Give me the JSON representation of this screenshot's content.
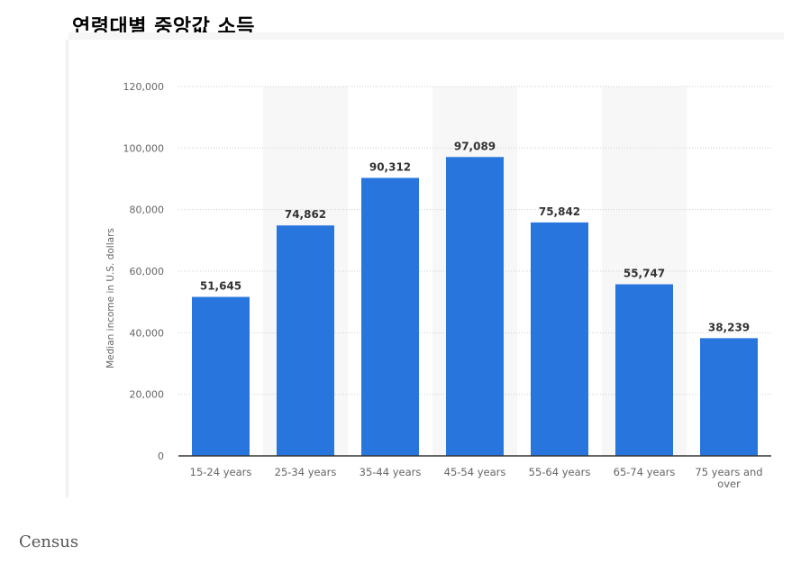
{
  "page": {
    "title": "연령대별 중앙값 소득",
    "source": "Census"
  },
  "chart_data": {
    "type": "bar",
    "title": "",
    "xlabel": "",
    "ylabel": "Median income in U.S. dollars",
    "categories": [
      "15-24 years",
      "25-34 years",
      "35-44 years",
      "45-54 years",
      "55-64 years",
      "65-74 years",
      "75 years and over"
    ],
    "category_lines": [
      [
        "15-24 years"
      ],
      [
        "25-34 years"
      ],
      [
        "35-44 years"
      ],
      [
        "45-54 years"
      ],
      [
        "55-64 years"
      ],
      [
        "65-74 years"
      ],
      [
        "75 years and",
        "over"
      ]
    ],
    "values": [
      51645,
      74862,
      90312,
      97089,
      75842,
      55747,
      38239
    ],
    "value_labels": [
      "51,645",
      "74,862",
      "90,312",
      "97,089",
      "75,842",
      "55,747",
      "38,239"
    ],
    "ylim": [
      0,
      120000
    ],
    "yticks": [
      0,
      20000,
      40000,
      60000,
      80000,
      100000,
      120000
    ],
    "ytick_labels": [
      "0",
      "20,000",
      "40,000",
      "60,000",
      "80,000",
      "100,000",
      "120,000"
    ],
    "grid": true,
    "legend": "none",
    "colors": {
      "bar": "#2876dd",
      "alt_band": "#f7f7f7",
      "grid": "#cfcfcf",
      "axis": "#333333",
      "tick_text": "#666666",
      "value_text": "#333333"
    }
  }
}
